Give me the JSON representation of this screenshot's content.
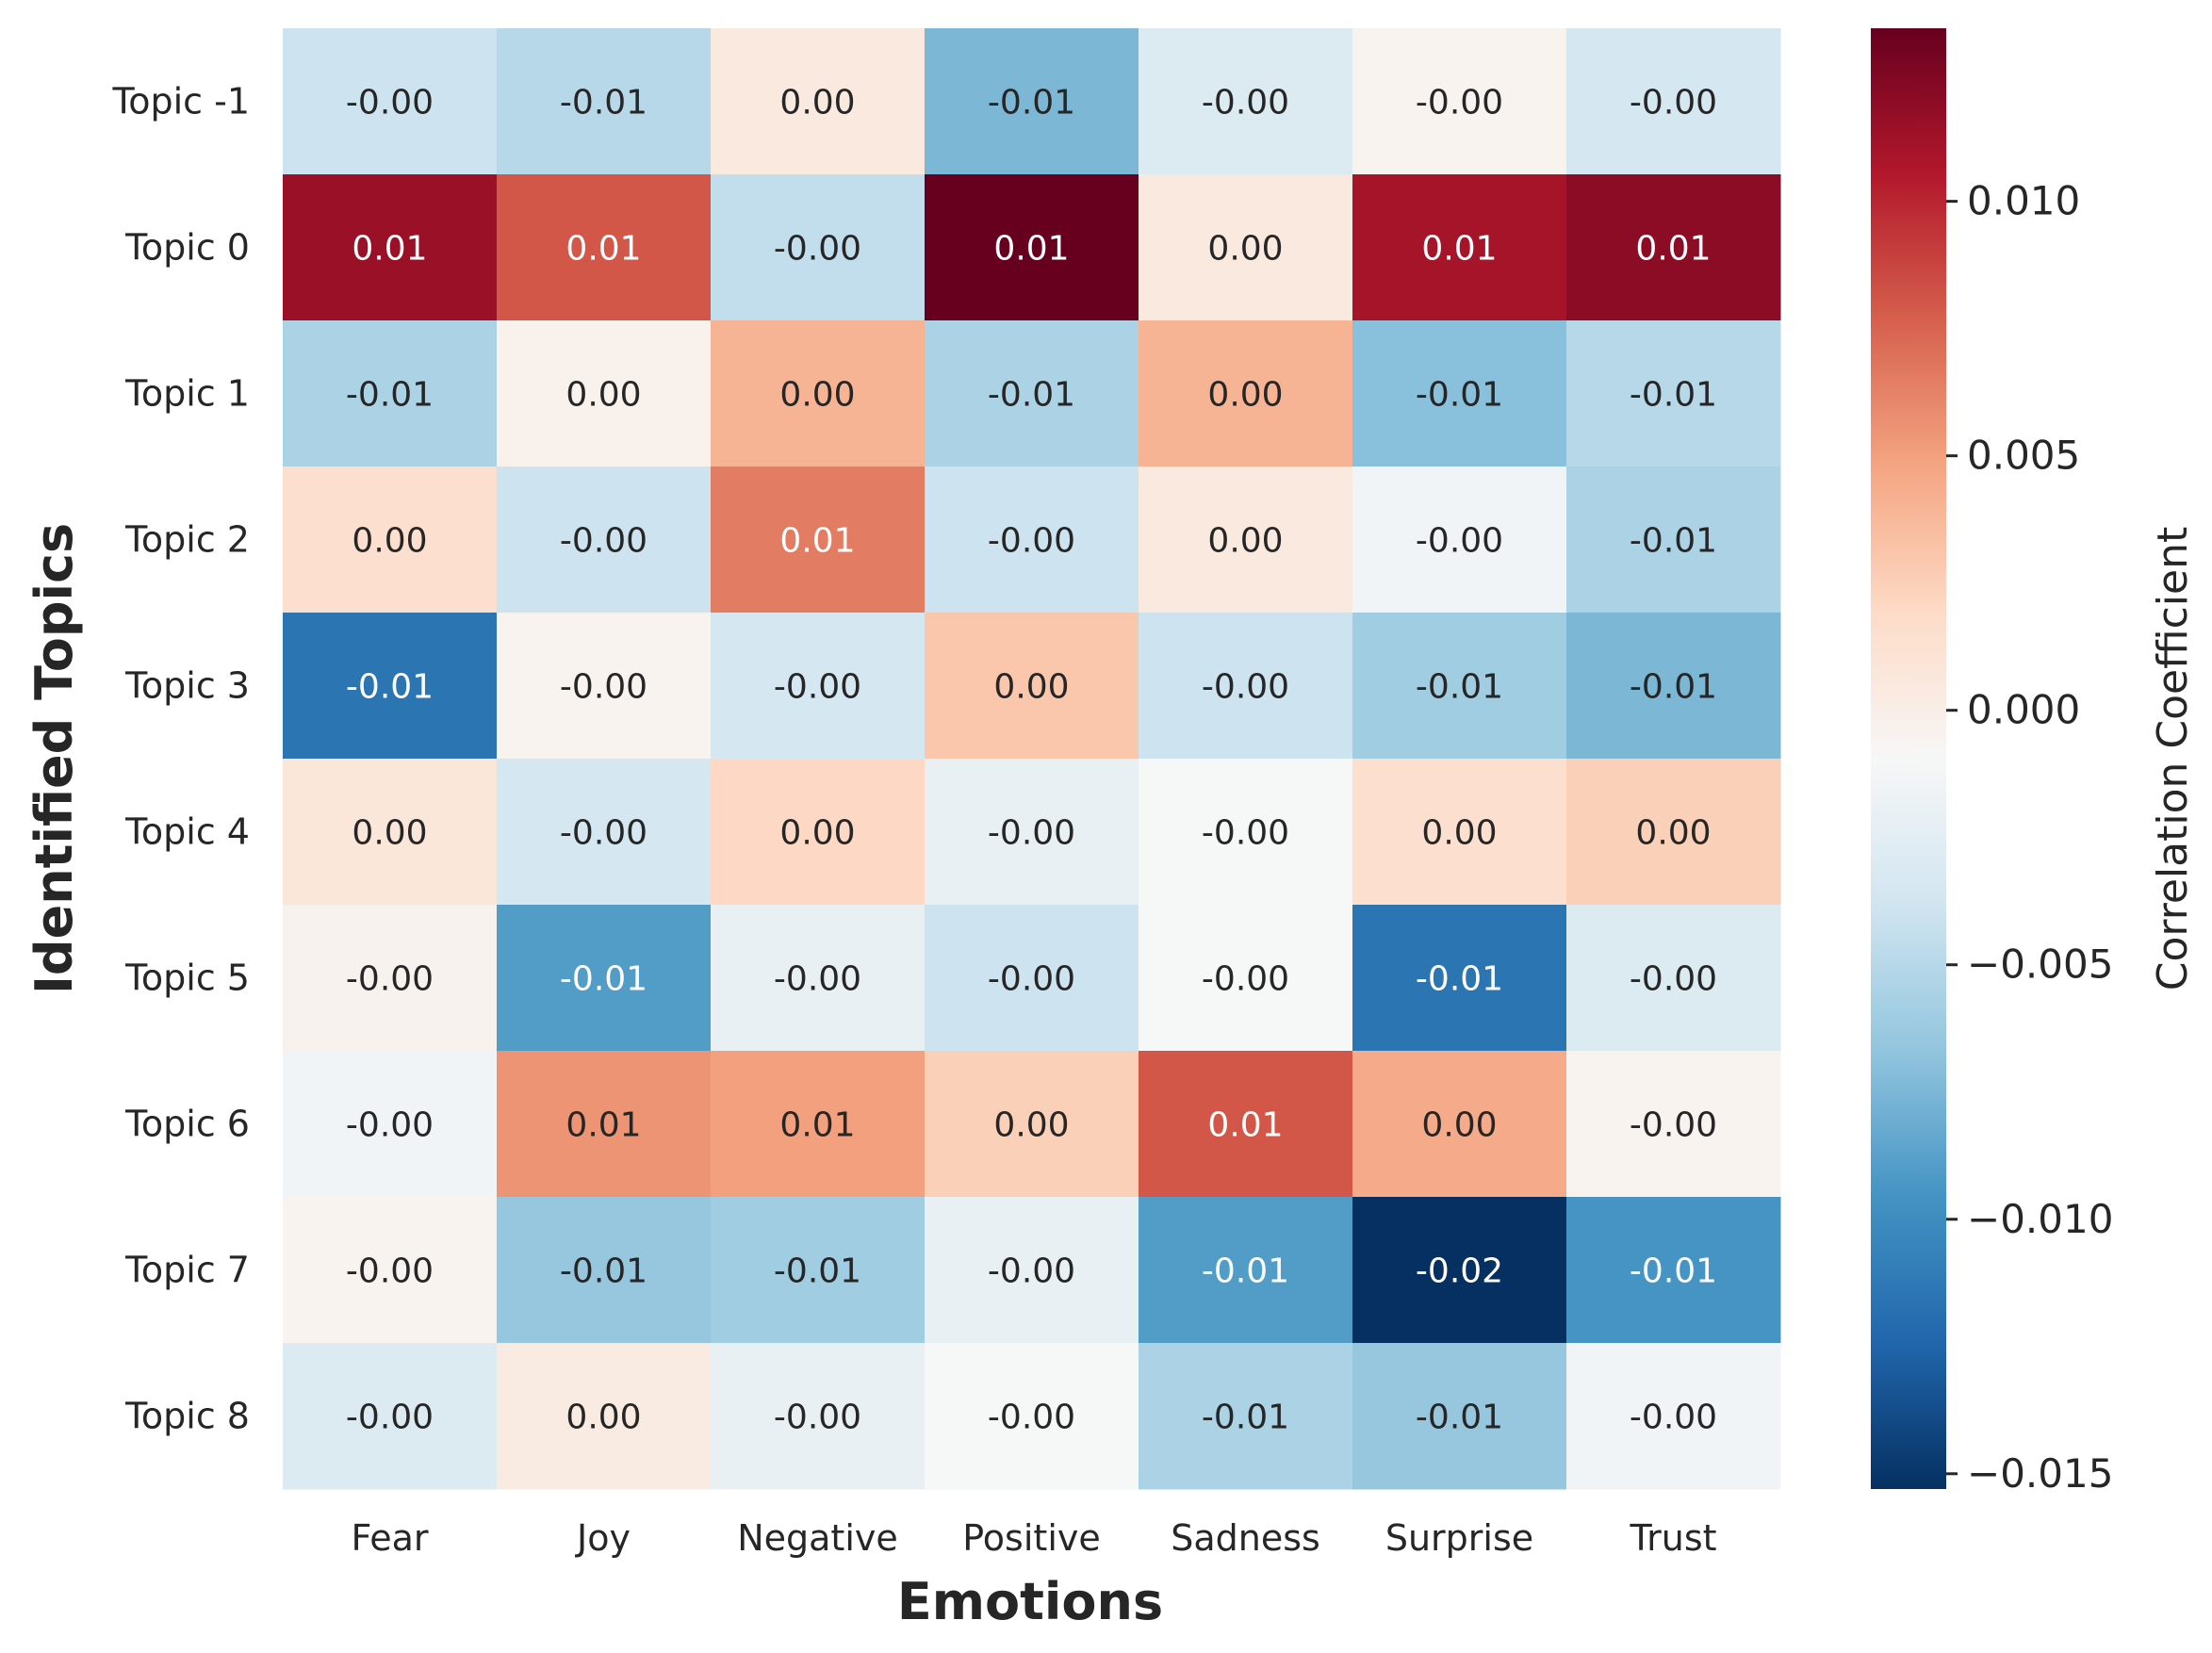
{
  "chart_data": {
    "type": "heatmap",
    "xlabel": "Emotions",
    "ylabel": "Identified Topics",
    "colorbar_label": "Correlation Coefficient",
    "colormap": "RdBu_r",
    "vmin": -0.0153,
    "vmax": 0.0134,
    "colorbar_ticks": [
      0.01,
      0.005,
      0.0,
      -0.005,
      -0.01,
      -0.015
    ],
    "colorbar_tick_labels": [
      "0.010",
      "0.005",
      "0.000",
      "−0.005",
      "−0.010",
      "−0.015"
    ],
    "columns": [
      "Fear",
      "Joy",
      "Negative",
      "Positive",
      "Sadness",
      "Surprise",
      "Trust"
    ],
    "rows": [
      "Topic -1",
      "Topic 0",
      "Topic 1",
      "Topic 2",
      "Topic 3",
      "Topic 4",
      "Topic 5",
      "Topic 6",
      "Topic 7",
      "Topic 8"
    ],
    "labels": [
      [
        "-0.00",
        "-0.01",
        "0.00",
        "-0.01",
        "-0.00",
        "-0.00",
        "-0.00"
      ],
      [
        "0.01",
        "0.01",
        "-0.00",
        "0.01",
        "0.00",
        "0.01",
        "0.01"
      ],
      [
        "-0.01",
        "0.00",
        "0.00",
        "-0.01",
        "0.00",
        "-0.01",
        "-0.01"
      ],
      [
        "0.00",
        "-0.00",
        "0.01",
        "-0.00",
        "0.00",
        "-0.00",
        "-0.01"
      ],
      [
        "-0.01",
        "-0.00",
        "-0.00",
        "0.00",
        "-0.00",
        "-0.01",
        "-0.01"
      ],
      [
        "0.00",
        "-0.00",
        "0.00",
        "-0.00",
        "-0.00",
        "0.00",
        "0.00"
      ],
      [
        "-0.00",
        "-0.01",
        "-0.00",
        "-0.00",
        "-0.00",
        "-0.01",
        "-0.00"
      ],
      [
        "-0.00",
        "0.01",
        "0.01",
        "0.00",
        "0.01",
        "0.00",
        "-0.00"
      ],
      [
        "-0.00",
        "-0.01",
        "-0.01",
        "-0.00",
        "-0.01",
        "-0.02",
        "-0.01"
      ],
      [
        "-0.00",
        "0.00",
        "-0.00",
        "-0.00",
        "-0.01",
        "-0.01",
        "-0.00"
      ]
    ],
    "values": [
      [
        -0.004,
        -0.005,
        0.0005,
        -0.0075,
        -0.003,
        -0.0005,
        -0.0035
      ],
      [
        0.0115,
        0.008,
        -0.0045,
        0.0134,
        0.0005,
        0.011,
        0.012
      ],
      [
        -0.0055,
        -0.0003,
        0.004,
        -0.0055,
        0.004,
        -0.007,
        -0.005
      ],
      [
        0.0015,
        -0.004,
        0.0065,
        -0.004,
        0.0005,
        -0.0015,
        -0.0055
      ],
      [
        -0.0115,
        -0.0005,
        -0.0035,
        0.003,
        -0.004,
        -0.006,
        -0.0075
      ],
      [
        0.0008,
        -0.0035,
        0.002,
        -0.002,
        -0.001,
        0.0015,
        0.0025
      ],
      [
        -0.0004,
        -0.009,
        -0.002,
        -0.004,
        -0.001,
        -0.0115,
        -0.003
      ],
      [
        -0.0015,
        0.0055,
        0.005,
        0.0025,
        0.008,
        0.0045,
        -0.0005
      ],
      [
        -0.0005,
        -0.0065,
        -0.006,
        -0.002,
        -0.009,
        -0.0153,
        -0.0095
      ],
      [
        -0.003,
        0.0003,
        -0.002,
        -0.001,
        -0.0055,
        -0.0065,
        -0.0015
      ]
    ]
  }
}
